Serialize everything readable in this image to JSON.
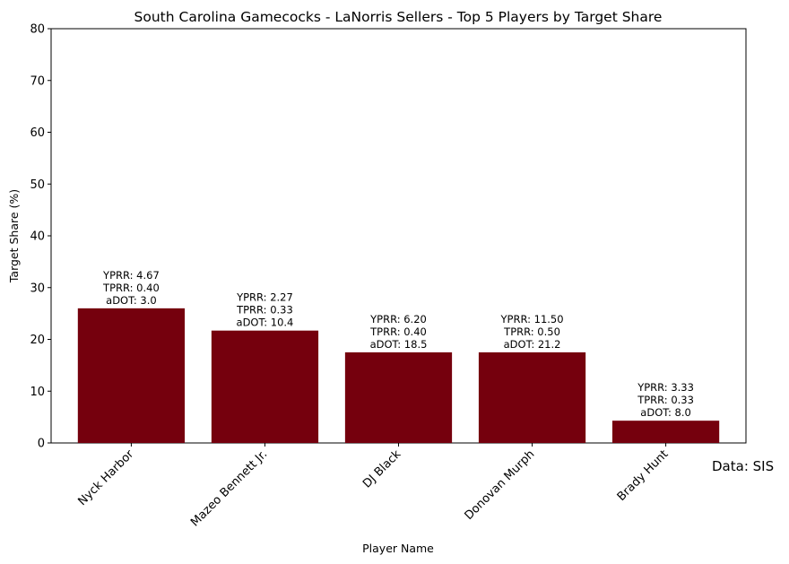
{
  "chart_data": {
    "type": "bar",
    "title": "South Carolina Gamecocks - LaNorris Sellers - Top 5 Players by Target Share",
    "xlabel": "Player Name",
    "ylabel": "Target Share (%)",
    "ylim": [
      0,
      80
    ],
    "yticks": [
      "0",
      "10",
      "20",
      "30",
      "40",
      "50",
      "60",
      "70",
      "80"
    ],
    "categories": [
      "Nyck Harbor",
      "Mazeo Bennett Jr.",
      "DJ Black",
      "Donovan Murph",
      "Brady Hunt"
    ],
    "values": [
      26.0,
      21.7,
      17.5,
      17.5,
      4.3
    ],
    "annotations": [
      [
        "YPRR: 4.67",
        "TPRR: 0.40",
        "aDOT: 3.0"
      ],
      [
        "YPRR: 2.27",
        "TPRR: 0.33",
        "aDOT: 10.4"
      ],
      [
        "YPRR: 6.20",
        "TPRR: 0.40",
        "aDOT: 18.5"
      ],
      [
        "YPRR: 11.50",
        "TPRR: 0.50",
        "aDOT: 21.2"
      ],
      [
        "YPRR: 3.33",
        "TPRR: 0.33",
        "aDOT: 8.0"
      ]
    ],
    "bar_color": "#75000d",
    "grid": false,
    "source_note": "Data: SIS"
  }
}
